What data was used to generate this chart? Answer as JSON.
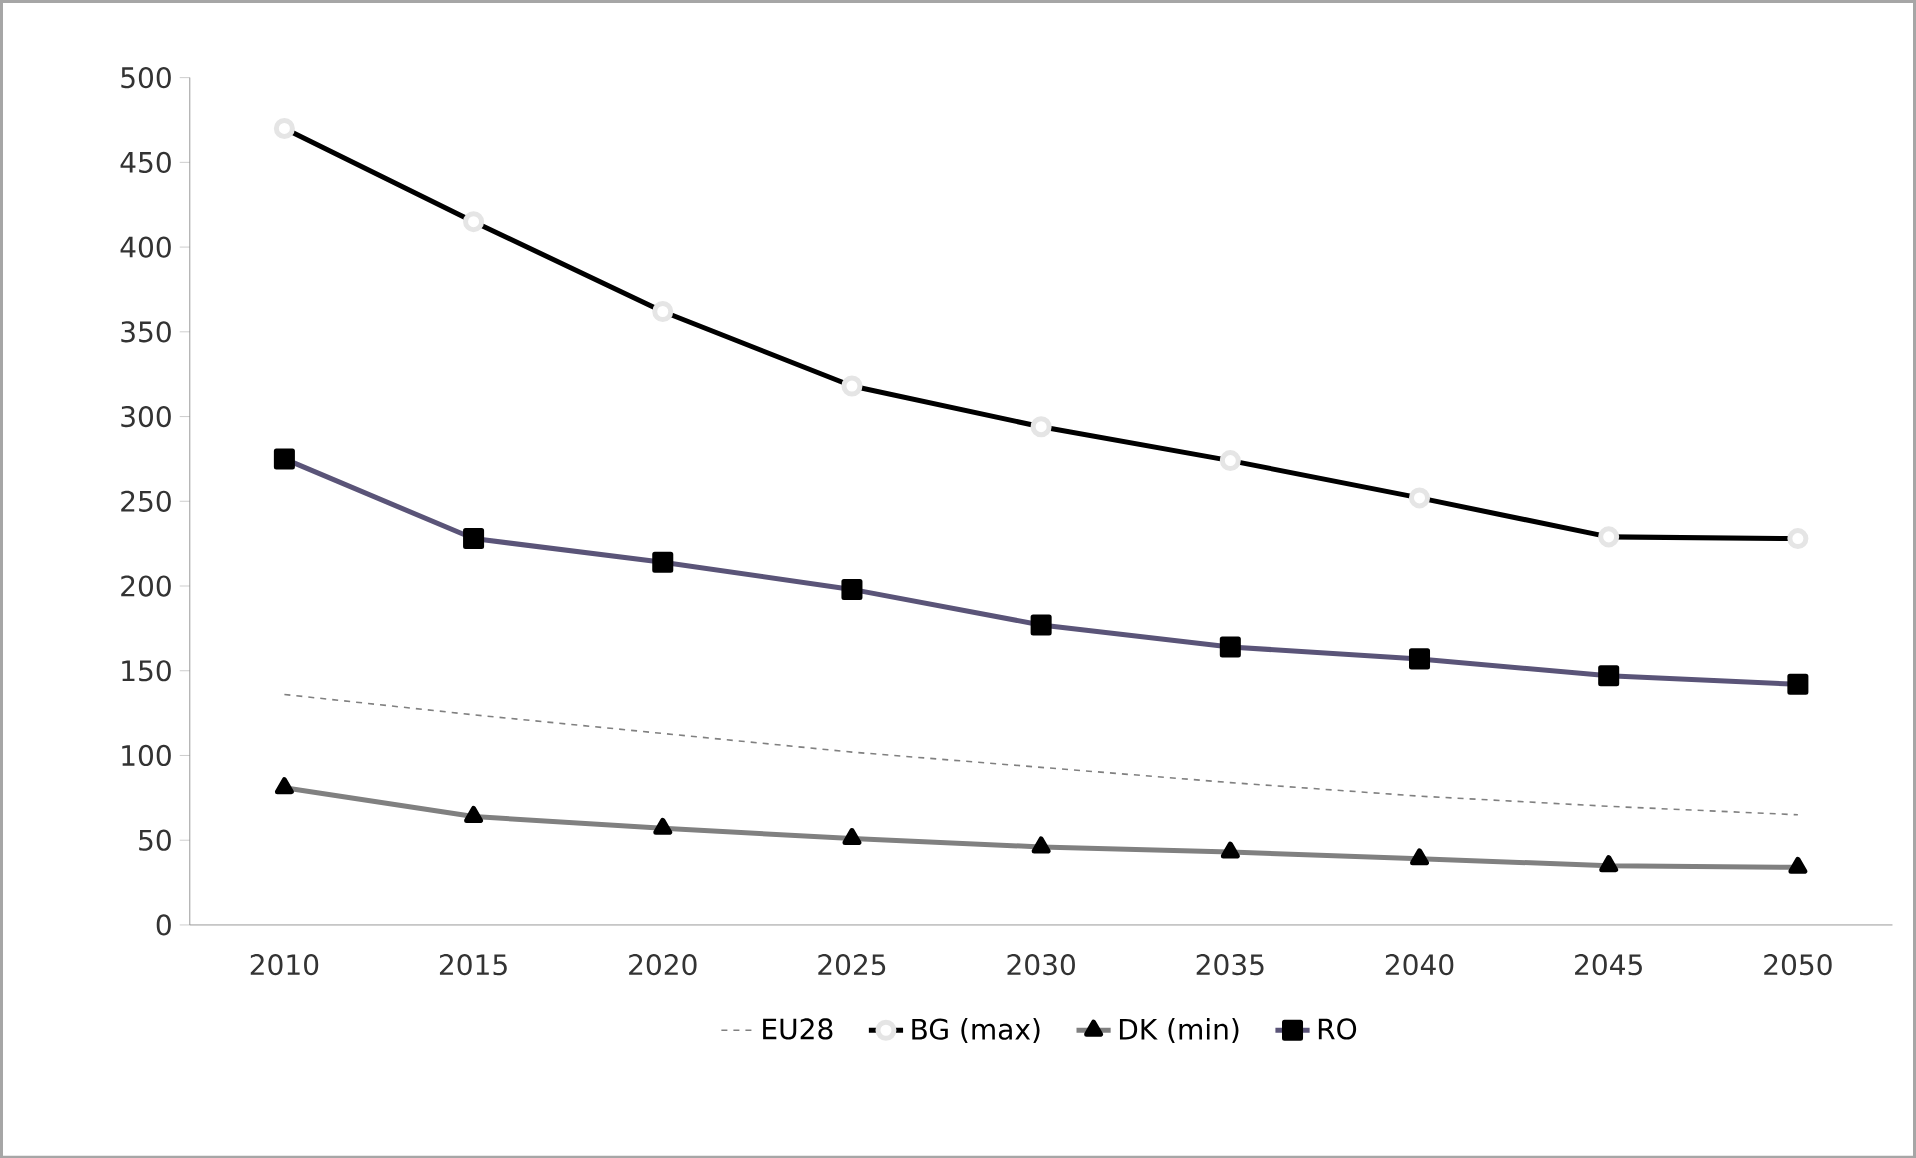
{
  "chart_data": {
    "type": "line",
    "categories": [
      "2010",
      "2015",
      "2020",
      "2025",
      "2030",
      "2035",
      "2040",
      "2045",
      "2050"
    ],
    "series": [
      {
        "name": "EU28",
        "color": "#808080",
        "line_style": "dashed",
        "marker": "none",
        "values": [
          136,
          124,
          113,
          102,
          93,
          84,
          76,
          70,
          65
        ]
      },
      {
        "name": "BG (max)",
        "color": "#000000",
        "line_style": "solid",
        "marker": "circle",
        "values": [
          470,
          415,
          362,
          318,
          294,
          274,
          252,
          229,
          228
        ]
      },
      {
        "name": "DK (min)",
        "color": "#808080",
        "line_style": "solid",
        "marker": "triangle",
        "values": [
          81,
          64,
          57,
          51,
          46,
          43,
          39,
          35,
          34
        ]
      },
      {
        "name": "RO",
        "color": "#5a5478",
        "line_style": "solid",
        "marker": "square",
        "values": [
          275,
          228,
          214,
          198,
          177,
          164,
          157,
          147,
          142
        ]
      }
    ],
    "ylim": [
      0,
      500
    ],
    "yticks": [
      0,
      50,
      100,
      150,
      200,
      250,
      300,
      350,
      400,
      450,
      500
    ],
    "grid": false,
    "legend": "bottom"
  }
}
